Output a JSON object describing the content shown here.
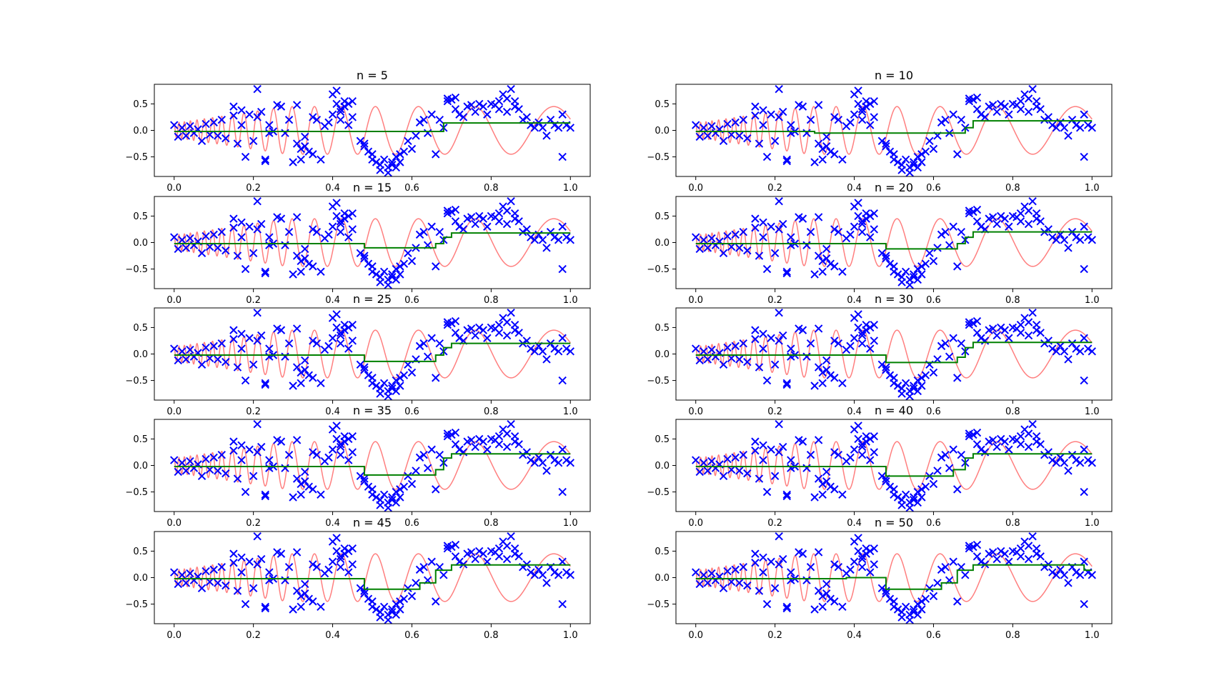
{
  "colors": {
    "points": "#0000ff",
    "true_function": "#ff7f7f",
    "fit": "#008000",
    "frame": "#000000",
    "background": "#ffffff"
  },
  "chart_data": [
    {
      "type": "scatter",
      "title": "n = 5",
      "xlim": [
        -0.05,
        1.05
      ],
      "ylim": [
        -0.87,
        0.87
      ],
      "xticks": [
        0.0,
        0.2,
        0.4,
        0.6,
        0.8,
        1.0
      ],
      "xtick_labels": [
        "0.0",
        "0.2",
        "0.4",
        "0.6",
        "0.8",
        "1.0"
      ],
      "yticks": [
        -0.5,
        0.0,
        0.5
      ],
      "ytick_labels": [
        "−0.5",
        "0.0",
        "0.5"
      ],
      "grid": false,
      "fit_steps": [
        {
          "x0": 0.0,
          "x1": 0.68,
          "y": -0.02
        },
        {
          "x0": 0.68,
          "x1": 1.0,
          "y": 0.14
        }
      ]
    },
    {
      "type": "scatter",
      "title": "n = 10",
      "xlim": [
        -0.05,
        1.05
      ],
      "ylim": [
        -0.87,
        0.87
      ],
      "xticks": [
        0.0,
        0.2,
        0.4,
        0.6,
        0.8,
        1.0
      ],
      "xtick_labels": [
        "0.0",
        "0.2",
        "0.4",
        "0.6",
        "0.8",
        "1.0"
      ],
      "yticks": [
        -0.5,
        0.0,
        0.5
      ],
      "ytick_labels": [
        "−0.5",
        "0.0",
        "0.5"
      ],
      "grid": false,
      "fit_steps": [
        {
          "x0": 0.0,
          "x1": 0.3,
          "y": -0.02
        },
        {
          "x0": 0.3,
          "x1": 0.68,
          "y": -0.05
        },
        {
          "x0": 0.68,
          "x1": 0.7,
          "y": 0.05
        },
        {
          "x0": 0.7,
          "x1": 1.0,
          "y": 0.18
        }
      ]
    },
    {
      "type": "scatter",
      "title": "n = 15",
      "xlim": [
        -0.05,
        1.05
      ],
      "ylim": [
        -0.87,
        0.87
      ],
      "xticks": [
        0.0,
        0.2,
        0.4,
        0.6,
        0.8,
        1.0
      ],
      "xtick_labels": [
        "0.0",
        "0.2",
        "0.4",
        "0.6",
        "0.8",
        "1.0"
      ],
      "yticks": [
        -0.5,
        0.0,
        0.5
      ],
      "ytick_labels": [
        "−0.5",
        "0.0",
        "0.5"
      ],
      "grid": false,
      "fit_steps": [
        {
          "x0": 0.0,
          "x1": 0.48,
          "y": -0.02
        },
        {
          "x0": 0.48,
          "x1": 0.66,
          "y": -0.1
        },
        {
          "x0": 0.66,
          "x1": 0.68,
          "y": -0.02
        },
        {
          "x0": 0.68,
          "x1": 0.7,
          "y": 0.1
        },
        {
          "x0": 0.7,
          "x1": 1.0,
          "y": 0.18
        }
      ]
    },
    {
      "type": "scatter",
      "title": "n = 20",
      "xlim": [
        -0.05,
        1.05
      ],
      "ylim": [
        -0.87,
        0.87
      ],
      "xticks": [
        0.0,
        0.2,
        0.4,
        0.6,
        0.8,
        1.0
      ],
      "xtick_labels": [
        "0.0",
        "0.2",
        "0.4",
        "0.6",
        "0.8",
        "1.0"
      ],
      "yticks": [
        -0.5,
        0.0,
        0.5
      ],
      "ytick_labels": [
        "−0.5",
        "0.0",
        "0.5"
      ],
      "grid": false,
      "fit_steps": [
        {
          "x0": 0.0,
          "x1": 0.48,
          "y": -0.02
        },
        {
          "x0": 0.48,
          "x1": 0.66,
          "y": -0.12
        },
        {
          "x0": 0.66,
          "x1": 0.68,
          "y": -0.02
        },
        {
          "x0": 0.68,
          "x1": 0.7,
          "y": 0.1
        },
        {
          "x0": 0.7,
          "x1": 1.0,
          "y": 0.2
        }
      ]
    },
    {
      "type": "scatter",
      "title": "n = 25",
      "xlim": [
        -0.05,
        1.05
      ],
      "ylim": [
        -0.87,
        0.87
      ],
      "xticks": [
        0.0,
        0.2,
        0.4,
        0.6,
        0.8,
        1.0
      ],
      "xtick_labels": [
        "0.0",
        "0.2",
        "0.4",
        "0.6",
        "0.8",
        "1.0"
      ],
      "yticks": [
        -0.5,
        0.0,
        0.5
      ],
      "ytick_labels": [
        "−0.5",
        "0.0",
        "0.5"
      ],
      "grid": false,
      "fit_steps": [
        {
          "x0": 0.0,
          "x1": 0.48,
          "y": -0.02
        },
        {
          "x0": 0.48,
          "x1": 0.66,
          "y": -0.14
        },
        {
          "x0": 0.66,
          "x1": 0.68,
          "y": -0.02
        },
        {
          "x0": 0.68,
          "x1": 0.7,
          "y": 0.12
        },
        {
          "x0": 0.7,
          "x1": 1.0,
          "y": 0.2
        }
      ]
    },
    {
      "type": "scatter",
      "title": "n = 30",
      "xlim": [
        -0.05,
        1.05
      ],
      "ylim": [
        -0.87,
        0.87
      ],
      "xticks": [
        0.0,
        0.2,
        0.4,
        0.6,
        0.8,
        1.0
      ],
      "xtick_labels": [
        "0.0",
        "0.2",
        "0.4",
        "0.6",
        "0.8",
        "1.0"
      ],
      "yticks": [
        -0.5,
        0.0,
        0.5
      ],
      "ytick_labels": [
        "−0.5",
        "0.0",
        "0.5"
      ],
      "grid": false,
      "fit_steps": [
        {
          "x0": 0.0,
          "x1": 0.48,
          "y": -0.02
        },
        {
          "x0": 0.48,
          "x1": 0.66,
          "y": -0.16
        },
        {
          "x0": 0.66,
          "x1": 0.68,
          "y": -0.06
        },
        {
          "x0": 0.68,
          "x1": 0.7,
          "y": 0.12
        },
        {
          "x0": 0.7,
          "x1": 1.0,
          "y": 0.22
        }
      ]
    },
    {
      "type": "scatter",
      "title": "n = 35",
      "xlim": [
        -0.05,
        1.05
      ],
      "ylim": [
        -0.87,
        0.87
      ],
      "xticks": [
        0.0,
        0.2,
        0.4,
        0.6,
        0.8,
        1.0
      ],
      "xtick_labels": [
        "0.0",
        "0.2",
        "0.4",
        "0.6",
        "0.8",
        "1.0"
      ],
      "yticks": [
        -0.5,
        0.0,
        0.5
      ],
      "ytick_labels": [
        "−0.5",
        "0.0",
        "0.5"
      ],
      "grid": false,
      "fit_steps": [
        {
          "x0": 0.0,
          "x1": 0.48,
          "y": -0.02
        },
        {
          "x0": 0.48,
          "x1": 0.66,
          "y": -0.18
        },
        {
          "x0": 0.66,
          "x1": 0.68,
          "y": -0.08
        },
        {
          "x0": 0.68,
          "x1": 0.7,
          "y": 0.14
        },
        {
          "x0": 0.7,
          "x1": 1.0,
          "y": 0.22
        }
      ]
    },
    {
      "type": "scatter",
      "title": "n = 40",
      "xlim": [
        -0.05,
        1.05
      ],
      "ylim": [
        -0.87,
        0.87
      ],
      "xticks": [
        0.0,
        0.2,
        0.4,
        0.6,
        0.8,
        1.0
      ],
      "xtick_labels": [
        "0.0",
        "0.2",
        "0.4",
        "0.6",
        "0.8",
        "1.0"
      ],
      "yticks": [
        -0.5,
        0.0,
        0.5
      ],
      "ytick_labels": [
        "−0.5",
        "0.0",
        "0.5"
      ],
      "grid": false,
      "fit_steps": [
        {
          "x0": 0.0,
          "x1": 0.48,
          "y": -0.02
        },
        {
          "x0": 0.48,
          "x1": 0.65,
          "y": -0.2
        },
        {
          "x0": 0.65,
          "x1": 0.68,
          "y": -0.08
        },
        {
          "x0": 0.68,
          "x1": 0.7,
          "y": 0.14
        },
        {
          "x0": 0.7,
          "x1": 1.0,
          "y": 0.22
        }
      ]
    },
    {
      "type": "scatter",
      "title": "n = 45",
      "xlim": [
        -0.05,
        1.05
      ],
      "ylim": [
        -0.87,
        0.87
      ],
      "xticks": [
        0.0,
        0.2,
        0.4,
        0.6,
        0.8,
        1.0
      ],
      "xtick_labels": [
        "0.0",
        "0.2",
        "0.4",
        "0.6",
        "0.8",
        "1.0"
      ],
      "yticks": [
        -0.5,
        0.0,
        0.5
      ],
      "ytick_labels": [
        "−0.5",
        "0.0",
        "0.5"
      ],
      "grid": false,
      "fit_steps": [
        {
          "x0": 0.0,
          "x1": 0.48,
          "y": -0.02
        },
        {
          "x0": 0.48,
          "x1": 0.62,
          "y": -0.22
        },
        {
          "x0": 0.62,
          "x1": 0.66,
          "y": -0.1
        },
        {
          "x0": 0.66,
          "x1": 0.7,
          "y": 0.14
        },
        {
          "x0": 0.7,
          "x1": 1.0,
          "y": 0.24
        }
      ]
    },
    {
      "type": "scatter",
      "title": "n = 50",
      "xlim": [
        -0.05,
        1.05
      ],
      "ylim": [
        -0.87,
        0.87
      ],
      "xticks": [
        0.0,
        0.2,
        0.4,
        0.6,
        0.8,
        1.0
      ],
      "xtick_labels": [
        "0.0",
        "0.2",
        "0.4",
        "0.6",
        "0.8",
        "1.0"
      ],
      "yticks": [
        -0.5,
        0.0,
        0.5
      ],
      "ytick_labels": [
        "−0.5",
        "0.0",
        "0.5"
      ],
      "grid": false,
      "fit_steps": [
        {
          "x0": 0.0,
          "x1": 0.38,
          "y": -0.02
        },
        {
          "x0": 0.38,
          "x1": 0.48,
          "y": 0.0
        },
        {
          "x0": 0.48,
          "x1": 0.62,
          "y": -0.22
        },
        {
          "x0": 0.62,
          "x1": 0.66,
          "y": -0.1
        },
        {
          "x0": 0.66,
          "x1": 0.7,
          "y": 0.14
        },
        {
          "x0": 0.7,
          "x1": 0.98,
          "y": 0.24
        },
        {
          "x0": 0.98,
          "x1": 1.0,
          "y": 0.14
        }
      ]
    }
  ],
  "scatter_points": {
    "x": [
      0.0,
      0.01,
      0.02,
      0.03,
      0.04,
      0.05,
      0.06,
      0.07,
      0.08,
      0.09,
      0.1,
      0.11,
      0.12,
      0.13,
      0.15,
      0.15,
      0.16,
      0.17,
      0.17,
      0.18,
      0.19,
      0.2,
      0.21,
      0.21,
      0.22,
      0.23,
      0.23,
      0.24,
      0.24,
      0.25,
      0.26,
      0.27,
      0.28,
      0.29,
      0.3,
      0.31,
      0.31,
      0.32,
      0.32,
      0.33,
      0.33,
      0.34,
      0.35,
      0.35,
      0.36,
      0.37,
      0.38,
      0.39,
      0.4,
      0.4,
      0.41,
      0.41,
      0.42,
      0.42,
      0.42,
      0.43,
      0.43,
      0.44,
      0.44,
      0.45,
      0.45,
      0.47,
      0.48,
      0.48,
      0.49,
      0.5,
      0.5,
      0.51,
      0.52,
      0.52,
      0.53,
      0.54,
      0.54,
      0.55,
      0.55,
      0.56,
      0.56,
      0.57,
      0.57,
      0.58,
      0.59,
      0.6,
      0.61,
      0.62,
      0.63,
      0.64,
      0.65,
      0.66,
      0.67,
      0.68,
      0.69,
      0.69,
      0.7,
      0.71,
      0.71,
      0.72,
      0.73,
      0.74,
      0.75,
      0.76,
      0.77,
      0.78,
      0.79,
      0.8,
      0.81,
      0.82,
      0.82,
      0.83,
      0.84,
      0.84,
      0.85,
      0.86,
      0.86,
      0.87,
      0.88,
      0.89,
      0.9,
      0.91,
      0.92,
      0.93,
      0.94,
      0.95,
      0.96,
      0.97,
      0.98,
      0.98,
      0.99,
      1.0
    ],
    "y": [
      0.1,
      -0.12,
      0.05,
      -0.1,
      0.08,
      -0.05,
      0.02,
      -0.2,
      0.12,
      -0.08,
      0.15,
      -0.1,
      0.2,
      -0.15,
      0.28,
      0.45,
      -0.25,
      0.38,
      0.1,
      -0.5,
      0.3,
      -0.2,
      0.78,
      0.25,
      0.35,
      -0.55,
      -0.58,
      0.1,
      -0.05,
      -0.02,
      0.48,
      0.45,
      -0.05,
      0.2,
      -0.6,
      -0.25,
      0.48,
      -0.35,
      -0.55,
      -0.3,
      -0.12,
      -0.4,
      0.25,
      -0.45,
      0.2,
      -0.55,
      0.08,
      0.15,
      0.3,
      0.68,
      0.5,
      0.75,
      0.35,
      0.4,
      0.2,
      0.55,
      0.45,
      0.1,
      0.5,
      0.55,
      0.25,
      -0.2,
      -0.25,
      -0.3,
      -0.4,
      -0.45,
      -0.55,
      -0.6,
      -0.75,
      -0.65,
      -0.55,
      -0.7,
      -0.8,
      -0.6,
      -0.65,
      -0.5,
      -0.7,
      -0.45,
      -0.6,
      -0.4,
      -0.2,
      -0.35,
      -0.1,
      0.15,
      0.2,
      -0.05,
      0.3,
      -0.45,
      0.2,
      0.05,
      0.55,
      0.6,
      0.58,
      0.4,
      0.62,
      0.3,
      0.25,
      0.45,
      0.48,
      0.35,
      0.5,
      0.45,
      0.3,
      0.5,
      0.48,
      0.55,
      0.4,
      0.68,
      0.6,
      0.35,
      0.78,
      0.45,
      0.55,
      0.4,
      0.2,
      0.25,
      0.1,
      0.05,
      0.15,
      0.05,
      -0.1,
      0.2,
      0.1,
      0.05,
      0.3,
      -0.5,
      0.1,
      0.05
    ]
  }
}
